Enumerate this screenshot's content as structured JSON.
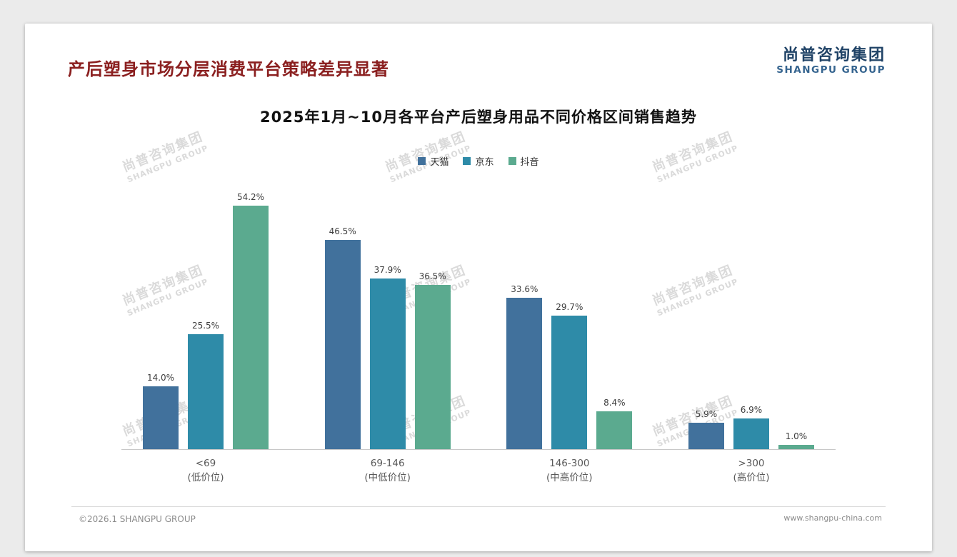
{
  "header": {
    "title": "产后塑身市场分层消费平台策略差异显著",
    "logo_cn": "尚普咨询集团",
    "logo_en": "SHANGPU GROUP"
  },
  "watermark": {
    "cn": "尚普咨询集团",
    "en": "SHANGPU GROUP"
  },
  "footer": {
    "copyright": "©2026.1 SHANGPU GROUP",
    "website": "www.shangpu-china.com"
  },
  "chart_data": {
    "type": "bar",
    "title": "2025年1月~10月各平台产后塑身用品不同价格区间销售趋势",
    "categories": [
      {
        "range": "<69",
        "tier": "(低价位)"
      },
      {
        "range": "69-146",
        "tier": "(中低价位)"
      },
      {
        "range": "146-300",
        "tier": "(中高价位)"
      },
      {
        "range": ">300",
        "tier": "(高价位)"
      }
    ],
    "series": [
      {
        "name": "天猫",
        "color": "#41719c",
        "values": [
          14.0,
          46.5,
          33.6,
          5.9
        ]
      },
      {
        "name": "京东",
        "color": "#2e8ba8",
        "values": [
          25.5,
          37.9,
          29.7,
          6.9
        ]
      },
      {
        "name": "抖音",
        "color": "#5baa8f",
        "values": [
          54.2,
          36.5,
          8.4,
          1.0
        ]
      }
    ],
    "value_suffix": "%",
    "ylim": [
      0,
      60
    ],
    "grid": false,
    "legend_position": "top"
  }
}
